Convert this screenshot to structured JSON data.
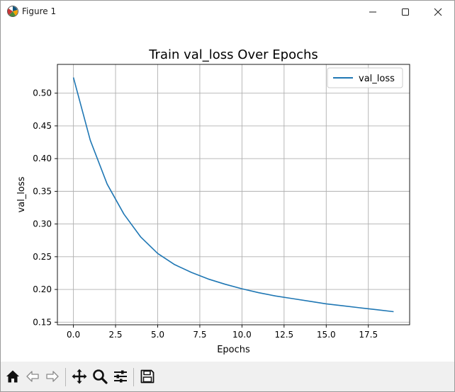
{
  "window": {
    "title": "Figure 1"
  },
  "titlebar_buttons": {
    "minimize": "minimize-icon",
    "maximize": "maximize-icon",
    "close": "close-icon"
  },
  "toolbar": {
    "icons": [
      "home-icon",
      "back-arrow-icon",
      "forward-arrow-icon",
      "pan-move-icon",
      "zoom-magnifier-icon",
      "configure-subplots-icon",
      "save-figure-icon"
    ]
  },
  "colors": {
    "line": "#1f77b4",
    "grid": "#b0b0b0",
    "toolbar_bg": "#f0f0f0"
  },
  "chart_data": {
    "type": "line",
    "title": "Train val_loss Over Epochs",
    "xlabel": "Epochs",
    "ylabel": "val_loss",
    "xlim": [
      -0.95,
      19.95
    ],
    "ylim": [
      0.146,
      0.544
    ],
    "xticks": [
      0,
      2.5,
      5,
      7.5,
      10,
      12.5,
      15,
      17.5
    ],
    "xtick_labels": [
      "0.0",
      "2.5",
      "5.0",
      "7.5",
      "10.0",
      "12.5",
      "15.0",
      "17.5"
    ],
    "yticks": [
      0.15,
      0.2,
      0.25,
      0.3,
      0.35,
      0.4,
      0.45,
      0.5
    ],
    "ytick_labels": [
      "0.15",
      "0.20",
      "0.25",
      "0.30",
      "0.35",
      "0.40",
      "0.45",
      "0.50"
    ],
    "grid": true,
    "legend_position": "upper right",
    "series": [
      {
        "name": "val_loss",
        "x": [
          0,
          1,
          2,
          3,
          4,
          5,
          6,
          7,
          8,
          9,
          10,
          11,
          12,
          13,
          14,
          15,
          16,
          17,
          18,
          19
        ],
        "values": [
          0.524,
          0.428,
          0.361,
          0.315,
          0.28,
          0.255,
          0.238,
          0.226,
          0.216,
          0.208,
          0.201,
          0.195,
          0.19,
          0.186,
          0.182,
          0.178,
          0.175,
          0.172,
          0.169,
          0.166
        ]
      }
    ]
  }
}
